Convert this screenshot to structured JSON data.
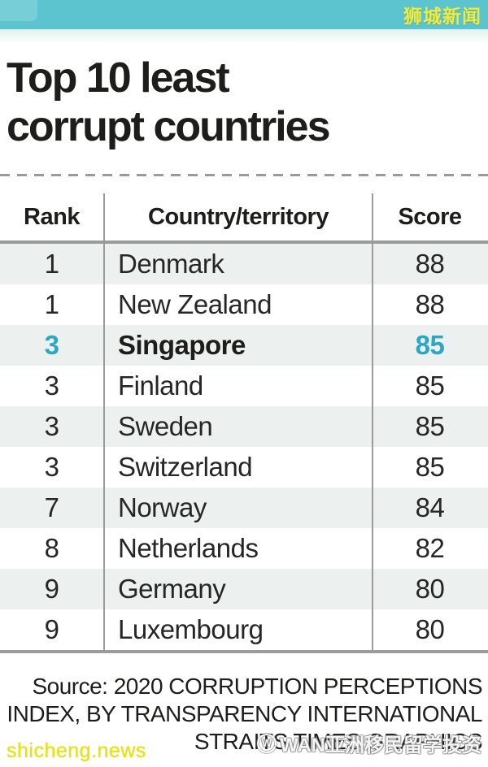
{
  "topbar": {
    "brand": "狮城新闻",
    "bar_color": "#5bc4ce",
    "brand_color": "#f2eb3c"
  },
  "headline": {
    "line1": "Top 10 least",
    "line2": "corrupt countries"
  },
  "chart_data": {
    "type": "table",
    "title": "Top 10 least corrupt countries",
    "columns": [
      "Rank",
      "Country/territory",
      "Score"
    ],
    "rows": [
      {
        "rank": "1",
        "country": "Denmark",
        "score": "88",
        "highlight": false
      },
      {
        "rank": "1",
        "country": "New Zealand",
        "score": "88",
        "highlight": false
      },
      {
        "rank": "3",
        "country": "Singapore",
        "score": "85",
        "highlight": true
      },
      {
        "rank": "3",
        "country": "Finland",
        "score": "85",
        "highlight": false
      },
      {
        "rank": "3",
        "country": "Sweden",
        "score": "85",
        "highlight": false
      },
      {
        "rank": "3",
        "country": "Switzerland",
        "score": "85",
        "highlight": false
      },
      {
        "rank": "7",
        "country": "Norway",
        "score": "84",
        "highlight": false
      },
      {
        "rank": "8",
        "country": "Netherlands",
        "score": "82",
        "highlight": false
      },
      {
        "rank": "9",
        "country": "Germany",
        "score": "80",
        "highlight": false
      },
      {
        "rank": "9",
        "country": "Luxembourg",
        "score": "80",
        "highlight": false
      }
    ],
    "highlight_country": "Singapore",
    "highlight_color": "#2ba7c4",
    "row_alt_color": "#ecf1ef",
    "grid_color": "#9b9b9b"
  },
  "source": {
    "line1": "Source: 2020 CORRUPTION PERCEPTIONS",
    "line2": "INDEX, BY TRANSPARENCY INTERNATIONAL",
    "line3": "STRAITS TIMES GRAPHICS"
  },
  "watermarks": {
    "bottom_left": "shicheng.news",
    "bottom_right_logo": "W",
    "bottom_right": "WAN亚洲移民留学投资"
  }
}
